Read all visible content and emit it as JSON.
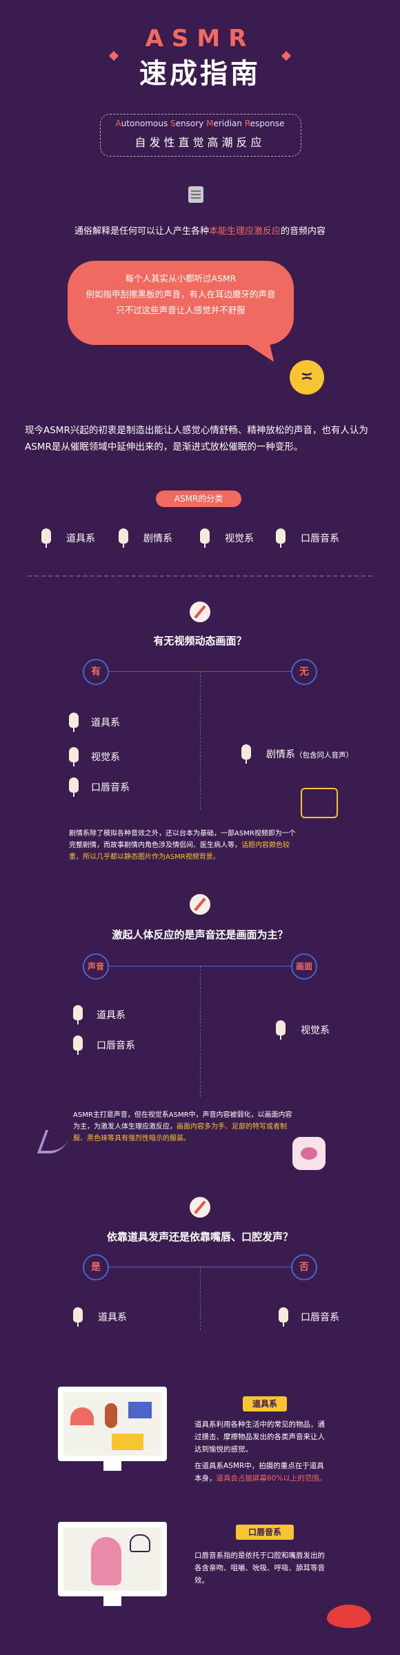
{
  "header": {
    "title_en": "ASMR",
    "title_cn": "速成指南",
    "full_name_parts": [
      "A",
      "utonomous ",
      "S",
      "ensory ",
      "M",
      "eridian ",
      "R",
      "esponse"
    ],
    "subtitle_cn": "自发性直觉高潮反应"
  },
  "intro": {
    "prefix": "通俗解释是任何可以让人产生各种",
    "highlight": "本能生理应激反应",
    "suffix": "的音频内容"
  },
  "bubble": {
    "line1": "每个人其实从小都听过ASMR",
    "line2": "例如指甲刮擦黑板的声音，有人在耳边磨牙的声音",
    "line3": "只不过这些声音让人感觉并不舒服"
  },
  "paragraph": "现今ASMR兴起的初衷是制造出能让人感觉心情舒畅、精神放松的声音，也有人认为ASMR是从催眠领域中延伸出来的，是渐进式放松催眠的一种变形。",
  "categories": {
    "pill": "ASMR的分类",
    "items": [
      "道具系",
      "剧情系",
      "视觉系",
      "口唇音系"
    ]
  },
  "section1": {
    "question": "有无视频动态画面？",
    "left_label": "有",
    "right_label": "无",
    "left_items": [
      "道具系",
      "视觉系",
      "口唇音系"
    ],
    "right_item": "剧情系",
    "right_note": "（包含同人音声）",
    "desc_line1": "剧情系除了模拟各种音效之外，还以台本为基础，一部ASMR视频即为一个",
    "desc_line2_a": "完整剧情，而故事剧情内角色涉及情侣间、医生病人等，",
    "desc_line2_b": "话题内容颇色较",
    "desc_line3": "重，所以几乎都以静态图片作为ASMR视频背景。"
  },
  "section2": {
    "question": "激起人体反应的是声音还是画面为主？",
    "left_label": "声音",
    "right_label": "画面",
    "left_items": [
      "道具系",
      "口唇音系"
    ],
    "right_item": "视觉系",
    "desc_line1": "ASMR主打是声音，但在视觉系ASMR中，声音内容被弱化，以画面内容",
    "desc_line2_a": "为主，为激发人体生理应激反应，",
    "desc_line2_b": "画面内容多为手、足部的特写或者制",
    "desc_line3": "服、黑色袜等具有强烈性暗示的服装。"
  },
  "section3": {
    "question": "依靠道具发声还是依靠嘴唇、口腔发声？",
    "left_label": "是",
    "right_label": "否",
    "left_item": "道具系",
    "right_item": "口唇音系"
  },
  "detail_props": {
    "badge": "道具系",
    "p1_line1": "道具系利用各种生活中的常见的物品，通",
    "p1_line2": "过摸击、摩擦物品发出的各类声音来让人",
    "p1_line3": "达到愉悦的感觉。",
    "p2_line1": "在道具系ASMR中，拍摄的重点在于道具",
    "p2_line2_a": "本身，",
    "p2_line2_b": "道具会占据屏幕60%以上的范围。"
  },
  "detail_mouth": {
    "badge": "口唇音系",
    "line1": "口唇音系指的是依托于口腔和嘴唇发出的",
    "line2": "各含亲吻、咀嚼、吮吸、呼吸、舔耳等音",
    "line3": "效。"
  },
  "colors": {
    "background": "#3a1c4f",
    "accent_coral": "#f06a5f",
    "accent_yellow": "#f7c531",
    "line_blue": "#4b64c8"
  },
  "icons": [
    "note-icon",
    "annoyed-emoji-icon",
    "microphone-icon",
    "compass-icon",
    "tarot-card-icon",
    "high-heel-icon",
    "lingerie-icon",
    "monitor-icon",
    "lips-icon"
  ]
}
